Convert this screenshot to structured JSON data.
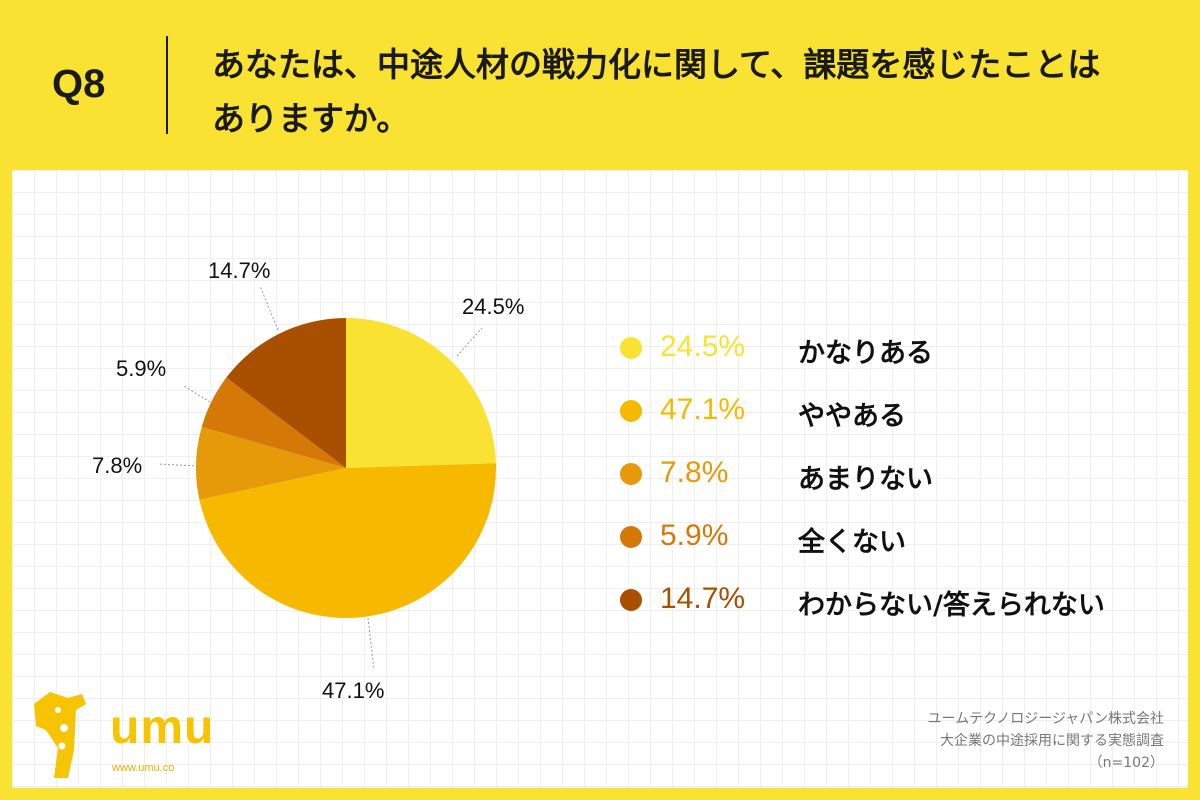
{
  "header": {
    "q_label": "Q8",
    "question_line1": "あなたは、中途人材の戦力化に関して、課題を感じたことは",
    "question_line2": "ありますか。"
  },
  "chart_data": {
    "type": "pie",
    "title": "",
    "start_angle_deg": 0,
    "direction": "clockwise",
    "slices": [
      {
        "label": "かなりある",
        "value": 24.5,
        "display": "24.5%",
        "color": "#f9e231"
      },
      {
        "label": "ややある",
        "value": 47.1,
        "display": "47.1%",
        "color": "#f6b900"
      },
      {
        "label": "あまりない",
        "value": 7.8,
        "display": "7.8%",
        "color": "#e69a0a"
      },
      {
        "label": "全くない",
        "value": 5.9,
        "display": "5.9%",
        "color": "#d67808"
      },
      {
        "label": "わからない/答えられない",
        "value": 14.7,
        "display": "14.7%",
        "color": "#a84f00"
      }
    ],
    "legend_position": "right"
  },
  "logo": {
    "name": "umu",
    "url": "www.umu.co",
    "icon": "giraffe-icon"
  },
  "source": {
    "company": "ユームテクノロジージャパン株式会社",
    "survey": "大企業の中途採用に関する実態調査",
    "n": "（n=102）"
  }
}
